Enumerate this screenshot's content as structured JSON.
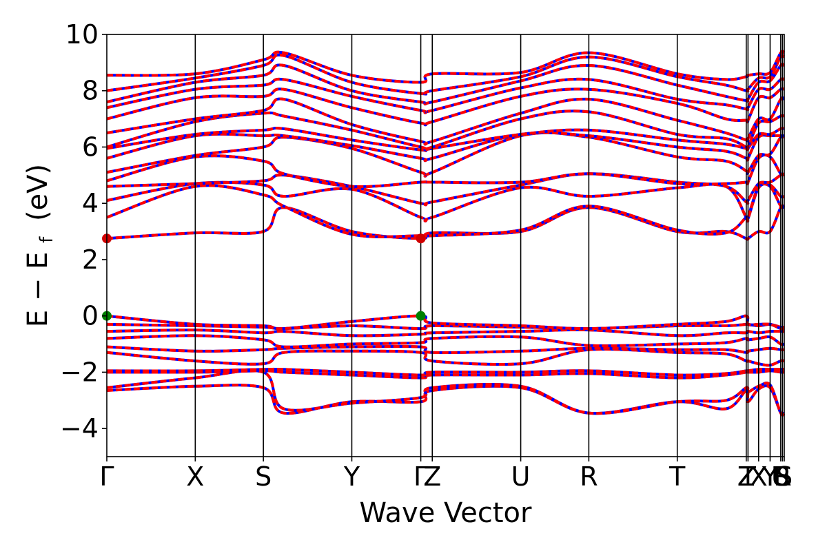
{
  "chart_data": {
    "type": "line",
    "title": "",
    "xlabel": "Wave Vector",
    "ylabel": "E − E",
    "ylabel_sub": "f",
    "ylabel_unit": "(eV)",
    "ylim": [
      -5,
      10
    ],
    "yticks": [
      -4,
      -2,
      0,
      2,
      4,
      6,
      8,
      10
    ],
    "ytick_labels": [
      "−4",
      "−2",
      "0",
      "2",
      "4",
      "6",
      "8",
      "10"
    ],
    "kpath": [
      {
        "label": "Γ",
        "pos": 0.0
      },
      {
        "label": "X",
        "pos": 1.0
      },
      {
        "label": "S",
        "pos": 1.77
      },
      {
        "label": "Y",
        "pos": 2.77
      },
      {
        "label": "Γ",
        "pos": 3.55
      },
      {
        "label": "Z",
        "pos": 3.68
      },
      {
        "label": "U",
        "pos": 4.68
      },
      {
        "label": "R",
        "pos": 5.45
      },
      {
        "label": "T",
        "pos": 6.45
      },
      {
        "label": "Z",
        "pos": 7.23
      },
      {
        "label": "T",
        "pos": 7.25
      },
      {
        "label": "X",
        "pos": 7.37
      },
      {
        "label": "Y",
        "pos": 7.5
      },
      {
        "label": "U",
        "pos": 7.62
      },
      {
        "label": "R",
        "pos": 7.64
      },
      {
        "label": "S",
        "pos": 7.66
      }
    ],
    "xlim": [
      0,
      7.66
    ],
    "colors": {
      "series_a": "#0000ff",
      "series_b": "#ff0000",
      "vbm": "#008000",
      "cbm": "#d00000"
    },
    "vbm": {
      "x": [
        0.0,
        3.55
      ],
      "y": [
        0.0,
        0.0
      ]
    },
    "cbm": {
      "x": [
        0.0,
        3.55
      ],
      "y": [
        2.75,
        2.75
      ]
    },
    "bands": [
      [
        -2.65,
        -2.5,
        -2.55,
        -3.45,
        -3.05,
        -3.05,
        -2.65,
        -2.55,
        -3.45,
        -3.05,
        -3.3,
        -2.65,
        -3.05,
        -2.6,
        -2.55,
        -3.45,
        -3.45
      ],
      [
        -2.55,
        -2.2,
        -2.0,
        -3.3,
        -3.1,
        -2.9,
        -2.55,
        -2.5,
        -3.45,
        -3.05,
        -3.0,
        -2.55,
        -2.7,
        -2.5,
        -2.45,
        -3.45,
        -3.45
      ],
      [
        -2.0,
        -2.0,
        -1.95,
        -2.0,
        -2.1,
        -2.2,
        -2.1,
        -2.1,
        -2.05,
        -2.2,
        -2.1,
        -2.0,
        -2.0,
        -2.0,
        -1.95,
        -2.0,
        -2.0
      ],
      [
        -1.95,
        -1.95,
        -1.9,
        -1.9,
        -2.0,
        -2.1,
        -2.0,
        -2.0,
        -1.95,
        -2.1,
        -2.05,
        -1.95,
        -1.95,
        -1.9,
        -1.9,
        -1.9,
        -1.9
      ],
      [
        -1.3,
        -1.6,
        -1.7,
        -1.3,
        -1.25,
        -1.3,
        -1.6,
        -1.7,
        -1.2,
        -1.3,
        -1.35,
        -1.6,
        -1.6,
        -1.7,
        -1.75,
        -1.6,
        -1.6
      ],
      [
        -1.1,
        -1.25,
        -1.2,
        -1.15,
        -1.1,
        -1.1,
        -1.3,
        -1.25,
        -1.15,
        -1.2,
        -1.2,
        -1.3,
        -1.25,
        -1.2,
        -1.15,
        -1.2,
        -1.2
      ],
      [
        -0.8,
        -0.7,
        -0.85,
        -1.1,
        -1.0,
        -0.95,
        -0.8,
        -0.75,
        -1.05,
        -1.0,
        -0.95,
        -0.8,
        -0.85,
        -0.8,
        -0.75,
        -1.0,
        -1.0
      ],
      [
        -0.55,
        -0.5,
        -0.6,
        -0.55,
        -0.7,
        -0.65,
        -0.6,
        -0.55,
        -0.5,
        -0.7,
        -0.6,
        -0.6,
        -0.55,
        -0.6,
        -0.55,
        -0.55,
        -0.55
      ],
      [
        -0.3,
        -0.35,
        -0.4,
        -0.45,
        -0.35,
        -0.45,
        -0.35,
        -0.4,
        -0.45,
        -0.35,
        -0.35,
        -0.3,
        -0.3,
        -0.35,
        -0.3,
        -0.4,
        -0.4
      ],
      [
        0.0,
        -0.3,
        -0.35,
        -0.45,
        -0.2,
        0.0,
        -0.25,
        -0.35,
        -0.45,
        -0.3,
        -0.2,
        0.0,
        -0.3,
        -0.3,
        -0.3,
        -0.45,
        -0.45
      ],
      [
        2.75,
        2.95,
        3.0,
        3.85,
        3.0,
        2.75,
        2.95,
        3.0,
        3.85,
        3.0,
        3.0,
        2.75,
        2.75,
        3.0,
        3.0,
        3.85,
        3.85
      ],
      [
        3.5,
        4.6,
        4.3,
        3.9,
        2.9,
        2.85,
        2.85,
        3.05,
        3.9,
        3.05,
        2.95,
        3.5,
        3.45,
        4.55,
        4.6,
        3.9,
        3.9
      ],
      [
        4.1,
        4.7,
        4.65,
        4.25,
        4.5,
        3.5,
        3.5,
        4.55,
        4.25,
        4.55,
        4.6,
        3.5,
        3.5,
        4.6,
        4.65,
        4.25,
        4.25
      ],
      [
        4.6,
        4.7,
        4.8,
        5.0,
        4.6,
        4.0,
        4.05,
        4.65,
        5.05,
        4.75,
        4.6,
        4.05,
        4.1,
        4.7,
        4.75,
        5.0,
        5.0
      ],
      [
        4.8,
        5.65,
        5.5,
        5.05,
        4.6,
        4.75,
        4.75,
        4.75,
        5.05,
        4.7,
        4.7,
        4.75,
        4.75,
        5.6,
        5.65,
        5.05,
        5.05
      ],
      [
        5.1,
        5.7,
        6.0,
        6.35,
        5.95,
        5.1,
        5.1,
        6.4,
        6.35,
        5.65,
        5.5,
        5.15,
        5.1,
        5.7,
        5.75,
        6.35,
        6.35
      ],
      [
        5.6,
        6.4,
        6.4,
        6.4,
        6.05,
        5.6,
        5.6,
        6.45,
        6.4,
        6.0,
        5.85,
        5.6,
        5.6,
        6.35,
        6.4,
        6.4,
        6.4
      ],
      [
        5.95,
        6.45,
        6.6,
        6.65,
        6.25,
        5.9,
        5.95,
        6.45,
        6.6,
        6.25,
        6.1,
        5.95,
        5.95,
        6.45,
        6.45,
        6.65,
        6.65
      ],
      [
        6.0,
        6.9,
        7.2,
        7.1,
        6.6,
        6.0,
        6.0,
        7.0,
        7.25,
        6.45,
        6.3,
        6.0,
        6.0,
        6.85,
        6.9,
        7.1,
        7.1
      ],
      [
        6.5,
        7.0,
        7.3,
        7.7,
        6.8,
        6.2,
        6.2,
        7.2,
        7.7,
        6.95,
        6.5,
        6.25,
        6.3,
        7.0,
        7.0,
        7.7,
        7.7
      ],
      [
        7.0,
        7.75,
        7.8,
        8.05,
        7.4,
        6.85,
        6.9,
        7.8,
        8.05,
        7.55,
        7.0,
        6.95,
        6.95,
        7.75,
        7.75,
        8.05,
        8.05
      ],
      [
        7.4,
        8.05,
        8.2,
        8.4,
        7.8,
        7.3,
        7.3,
        8.1,
        8.4,
        7.7,
        7.5,
        7.35,
        7.4,
        8.05,
        8.05,
        8.4,
        8.4
      ],
      [
        7.6,
        8.3,
        8.55,
        8.9,
        8.0,
        7.6,
        7.6,
        8.35,
        8.9,
        8.2,
        7.8,
        7.65,
        7.7,
        8.3,
        8.35,
        8.9,
        8.9
      ],
      [
        8.0,
        8.45,
        8.9,
        9.25,
        8.3,
        7.9,
        8.0,
        8.5,
        9.2,
        8.5,
        8.2,
        8.0,
        8.05,
        8.45,
        8.5,
        9.2,
        9.2
      ],
      [
        8.55,
        8.6,
        9.1,
        9.35,
        8.55,
        8.3,
        8.6,
        8.65,
        9.35,
        8.6,
        8.4,
        8.5,
        8.55,
        8.6,
        8.65,
        9.35,
        9.35
      ]
    ],
    "band_x": [
      0.0,
      1.0,
      1.77,
      2.0,
      2.77,
      3.55,
      3.68,
      4.68,
      5.45,
      6.45,
      7.0,
      7.23,
      7.25,
      7.37,
      7.5,
      7.62,
      7.66
    ]
  }
}
